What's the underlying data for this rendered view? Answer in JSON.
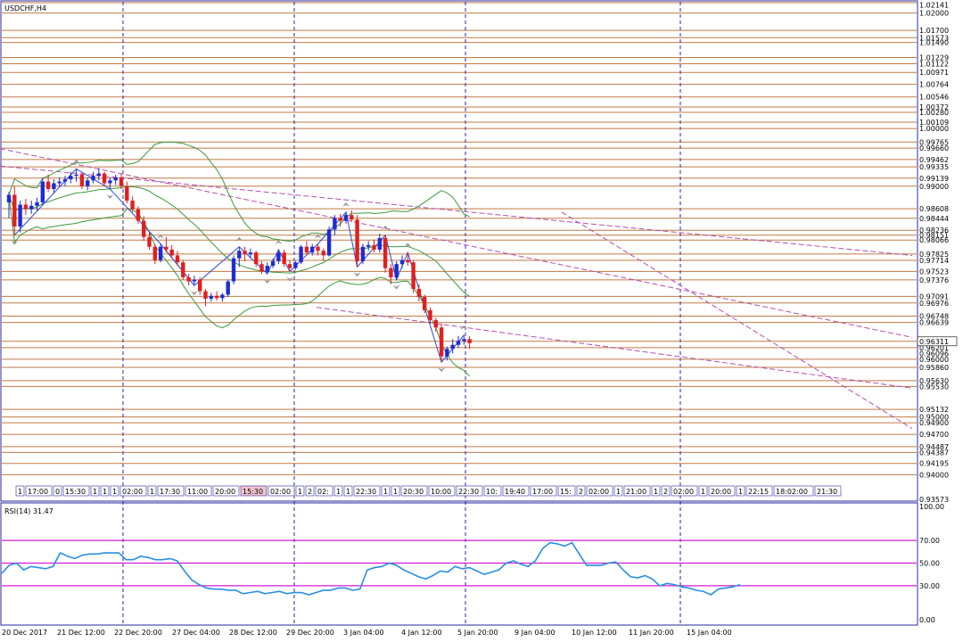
{
  "chart_data": [
    {
      "type": "candlestick",
      "title": "USDCHF,H4",
      "colors": {
        "up": "#1f2bd6",
        "down": "#e0201e",
        "sr_line": "#c07a43",
        "trend": "#b04fb0",
        "bands": "#3c9a3c",
        "zigzag": "#2a49d8",
        "fractal": "#999999",
        "axis_box": "#2a2aa0"
      },
      "y_range": [
        0.93573,
        1.0218
      ],
      "price_labels": [
        1.02141,
        1.02,
        1.017,
        1.01573,
        1.0149,
        1.01229,
        1.01122,
        1.00971,
        1.00764,
        1.00546,
        1.00372,
        1.0028,
        1.00109,
        1.0,
        0.99765,
        0.9966,
        0.99462,
        0.99335,
        0.99139,
        0.99,
        0.98608,
        0.98444,
        0.98236,
        0.98151,
        0.98066,
        0.97825,
        0.97714,
        0.97523,
        0.97376,
        0.97091,
        0.96976,
        0.96748,
        0.96639,
        0.96311,
        0.96201,
        0.96096,
        0.96,
        0.9586,
        0.9563,
        0.9553,
        0.95132,
        0.95,
        0.949,
        0.947,
        0.94487,
        0.94387,
        0.94195,
        0.94,
        0.93573
      ],
      "sr_levels": [
        1.0218,
        1.02,
        1.017,
        1.01573,
        1.0149,
        1.01229,
        1.01122,
        1.00971,
        1.00764,
        1.00546,
        1.00372,
        1.0028,
        1.00109,
        1.0,
        0.99765,
        0.9966,
        0.99462,
        0.99335,
        0.99139,
        0.99,
        0.98608,
        0.98444,
        0.98236,
        0.98151,
        0.98066,
        0.97825,
        0.97714,
        0.97523,
        0.97376,
        0.97091,
        0.96976,
        0.96748,
        0.96639,
        0.96311,
        0.96201,
        0.96,
        0.9586,
        0.9563,
        0.9553,
        0.95132,
        0.95,
        0.949,
        0.947,
        0.94487,
        0.94387,
        0.94195,
        0.94
      ],
      "candles": [
        [
          0.9872,
          0.989,
          0.9845,
          0.9885
        ],
        [
          0.9885,
          0.99,
          0.9815,
          0.983
        ],
        [
          0.983,
          0.9875,
          0.982,
          0.9868
        ],
        [
          0.9868,
          0.9878,
          0.985,
          0.986
        ],
        [
          0.986,
          0.9875,
          0.9852,
          0.9866
        ],
        [
          0.9866,
          0.988,
          0.9858,
          0.9872
        ],
        [
          0.9872,
          0.9915,
          0.9868,
          0.9908
        ],
        [
          0.9908,
          0.992,
          0.989,
          0.9895
        ],
        [
          0.9895,
          0.9912,
          0.9888,
          0.9905
        ],
        [
          0.9905,
          0.9915,
          0.9898,
          0.9908
        ],
        [
          0.9908,
          0.9918,
          0.99,
          0.9912
        ],
        [
          0.9912,
          0.9925,
          0.9905,
          0.9918
        ],
        [
          0.9918,
          0.993,
          0.9908,
          0.992
        ],
        [
          0.992,
          0.9925,
          0.9895,
          0.99
        ],
        [
          0.99,
          0.9915,
          0.9893,
          0.991
        ],
        [
          0.991,
          0.9925,
          0.9905,
          0.9918
        ],
        [
          0.9918,
          0.9932,
          0.991,
          0.9922
        ],
        [
          0.9922,
          0.9925,
          0.99,
          0.9905
        ],
        [
          0.9905,
          0.9915,
          0.9895,
          0.991
        ],
        [
          0.991,
          0.992,
          0.9902,
          0.9915
        ],
        [
          0.9915,
          0.9922,
          0.9895,
          0.99
        ],
        [
          0.99,
          0.9908,
          0.987,
          0.9875
        ],
        [
          0.9875,
          0.9882,
          0.9855,
          0.986
        ],
        [
          0.986,
          0.9865,
          0.9835,
          0.984
        ],
        [
          0.984,
          0.9848,
          0.9805,
          0.9812
        ],
        [
          0.9812,
          0.982,
          0.979,
          0.9795
        ],
        [
          0.9795,
          0.98,
          0.9765,
          0.9772
        ],
        [
          0.9772,
          0.98,
          0.9768,
          0.9795
        ],
        [
          0.9795,
          0.9812,
          0.9785,
          0.979
        ],
        [
          0.979,
          0.9798,
          0.9775,
          0.978
        ],
        [
          0.978,
          0.9788,
          0.9762,
          0.9768
        ],
        [
          0.9768,
          0.9772,
          0.9738,
          0.9742
        ],
        [
          0.9742,
          0.9748,
          0.9728,
          0.9735
        ],
        [
          0.9735,
          0.9745,
          0.9728,
          0.9738
        ],
        [
          0.9738,
          0.9742,
          0.9712,
          0.9718
        ],
        [
          0.9718,
          0.9722,
          0.9692,
          0.9705
        ],
        [
          0.9705,
          0.9715,
          0.97,
          0.971
        ],
        [
          0.971,
          0.9718,
          0.9702,
          0.9706
        ],
        [
          0.9706,
          0.9715,
          0.97,
          0.9712
        ],
        [
          0.9712,
          0.9738,
          0.9708,
          0.9735
        ],
        [
          0.9735,
          0.978,
          0.973,
          0.9775
        ],
        [
          0.9775,
          0.9795,
          0.976,
          0.9788
        ],
        [
          0.9788,
          0.9795,
          0.977,
          0.9782
        ],
        [
          0.9782,
          0.9792,
          0.9775,
          0.9785
        ],
        [
          0.9785,
          0.9788,
          0.976,
          0.9765
        ],
        [
          0.9765,
          0.977,
          0.9748,
          0.9752
        ],
        [
          0.9752,
          0.9768,
          0.9748,
          0.9762
        ],
        [
          0.9762,
          0.9775,
          0.9758,
          0.977
        ],
        [
          0.977,
          0.979,
          0.9765,
          0.9785
        ],
        [
          0.9785,
          0.979,
          0.976,
          0.9765
        ],
        [
          0.9765,
          0.9772,
          0.9752,
          0.9758
        ],
        [
          0.9758,
          0.977,
          0.9755,
          0.9768
        ],
        [
          0.9768,
          0.9798,
          0.9765,
          0.9795
        ],
        [
          0.9795,
          0.9805,
          0.978,
          0.9785
        ],
        [
          0.9785,
          0.98,
          0.978,
          0.9795
        ],
        [
          0.9795,
          0.98,
          0.978,
          0.9788
        ],
        [
          0.9788,
          0.9792,
          0.977,
          0.978
        ],
        [
          0.978,
          0.983,
          0.9778,
          0.9825
        ],
        [
          0.9825,
          0.985,
          0.9815,
          0.9845
        ],
        [
          0.9845,
          0.9852,
          0.983,
          0.984
        ],
        [
          0.984,
          0.9855,
          0.9835,
          0.985
        ],
        [
          0.985,
          0.9858,
          0.9838,
          0.9842
        ],
        [
          0.9842,
          0.985,
          0.976,
          0.977
        ],
        [
          0.977,
          0.98,
          0.9765,
          0.9795
        ],
        [
          0.9795,
          0.9805,
          0.9788,
          0.9798
        ],
        [
          0.9798,
          0.9808,
          0.9785,
          0.979
        ],
        [
          0.979,
          0.9818,
          0.9785,
          0.981
        ],
        [
          0.981,
          0.9815,
          0.975,
          0.9758
        ],
        [
          0.9758,
          0.9765,
          0.973,
          0.9742
        ],
        [
          0.9742,
          0.977,
          0.9738,
          0.9765
        ],
        [
          0.9765,
          0.978,
          0.9758,
          0.9772
        ],
        [
          0.9772,
          0.9785,
          0.9762,
          0.9768
        ],
        [
          0.9768,
          0.9772,
          0.9715,
          0.9722
        ],
        [
          0.9722,
          0.973,
          0.97,
          0.9708
        ],
        [
          0.9708,
          0.9712,
          0.968,
          0.9685
        ],
        [
          0.9685,
          0.969,
          0.9662,
          0.9668
        ],
        [
          0.9668,
          0.9672,
          0.9648,
          0.9655
        ],
        [
          0.9655,
          0.9662,
          0.9595,
          0.9605
        ],
        [
          0.9605,
          0.9622,
          0.9598,
          0.9618
        ],
        [
          0.9618,
          0.9635,
          0.961,
          0.9625
        ],
        [
          0.9625,
          0.964,
          0.962,
          0.9632
        ],
        [
          0.9632,
          0.9642,
          0.9625,
          0.9635
        ],
        [
          0.9635,
          0.964,
          0.9618,
          0.9628
        ]
      ],
      "trend_lines": [
        [
          0,
          0.9935,
          1023,
          0.978
        ],
        [
          0,
          0.9965,
          1023,
          0.9638
        ],
        [
          355,
          0.969,
          1023,
          0.955
        ],
        [
          630,
          0.9855,
          1023,
          0.948
        ]
      ],
      "x_tick_labels": [
        "20 Dec 2017",
        "21 Dec 12:00",
        "22 Dec 20:00",
        "27 Dec 04:00",
        "28 Dec 12:00",
        "29 Dec 20:00",
        "3 Jan 04:00",
        "4 Jan 12:00",
        "5 Jan 20:00",
        "9 Jan 04:00",
        "10 Jan 12:00",
        "11 Jan 20:00",
        "15 Jan 04:00"
      ],
      "time_tags": [
        "1",
        "17:00",
        "0",
        "15:30",
        "1",
        "1",
        "1",
        "02:00",
        "1",
        "17:30",
        "11:00",
        "20:00",
        "15:30",
        "02:00",
        "1",
        "2",
        "02:",
        "1",
        "1",
        "22:30",
        "1",
        "1",
        "20:30",
        "10:00",
        "22:30",
        "10:",
        "19:40",
        "17:00",
        "15:",
        "2",
        "02:00",
        "1",
        "21:00",
        "1",
        "2",
        "02:00",
        "1",
        "20:00",
        "1",
        "22:15",
        "18:02:00",
        "21:30"
      ],
      "current_price": "0.96311"
    },
    {
      "type": "line",
      "title": "RSI(14) 31.47",
      "y_range": [
        0,
        100
      ],
      "y_tick_labels": [
        "100.00",
        "70.00",
        "50.00",
        "30.00",
        "0.00"
      ],
      "levels": [
        70,
        50,
        30
      ],
      "values": [
        41,
        48,
        50,
        44,
        47,
        46,
        45,
        47,
        59,
        56,
        54,
        57,
        58,
        58,
        59,
        59,
        59,
        53,
        53,
        56,
        55,
        53,
        53,
        54,
        52,
        43,
        35,
        31,
        28,
        27,
        27,
        26,
        26,
        23,
        24,
        25,
        23,
        24,
        25,
        23,
        24,
        24,
        22,
        24,
        26,
        26,
        28,
        28,
        26,
        27,
        44,
        46,
        47,
        50,
        48,
        44,
        41,
        38,
        36,
        39,
        43,
        42,
        47,
        45,
        46,
        43,
        40,
        42,
        44,
        50,
        52,
        49,
        47,
        52,
        63,
        68,
        67,
        65,
        68,
        58,
        48,
        48,
        48,
        50,
        51,
        44,
        38,
        37,
        39,
        36,
        30,
        32,
        31,
        29,
        28,
        26,
        25,
        22,
        27,
        28,
        29,
        31
      ]
    }
  ]
}
